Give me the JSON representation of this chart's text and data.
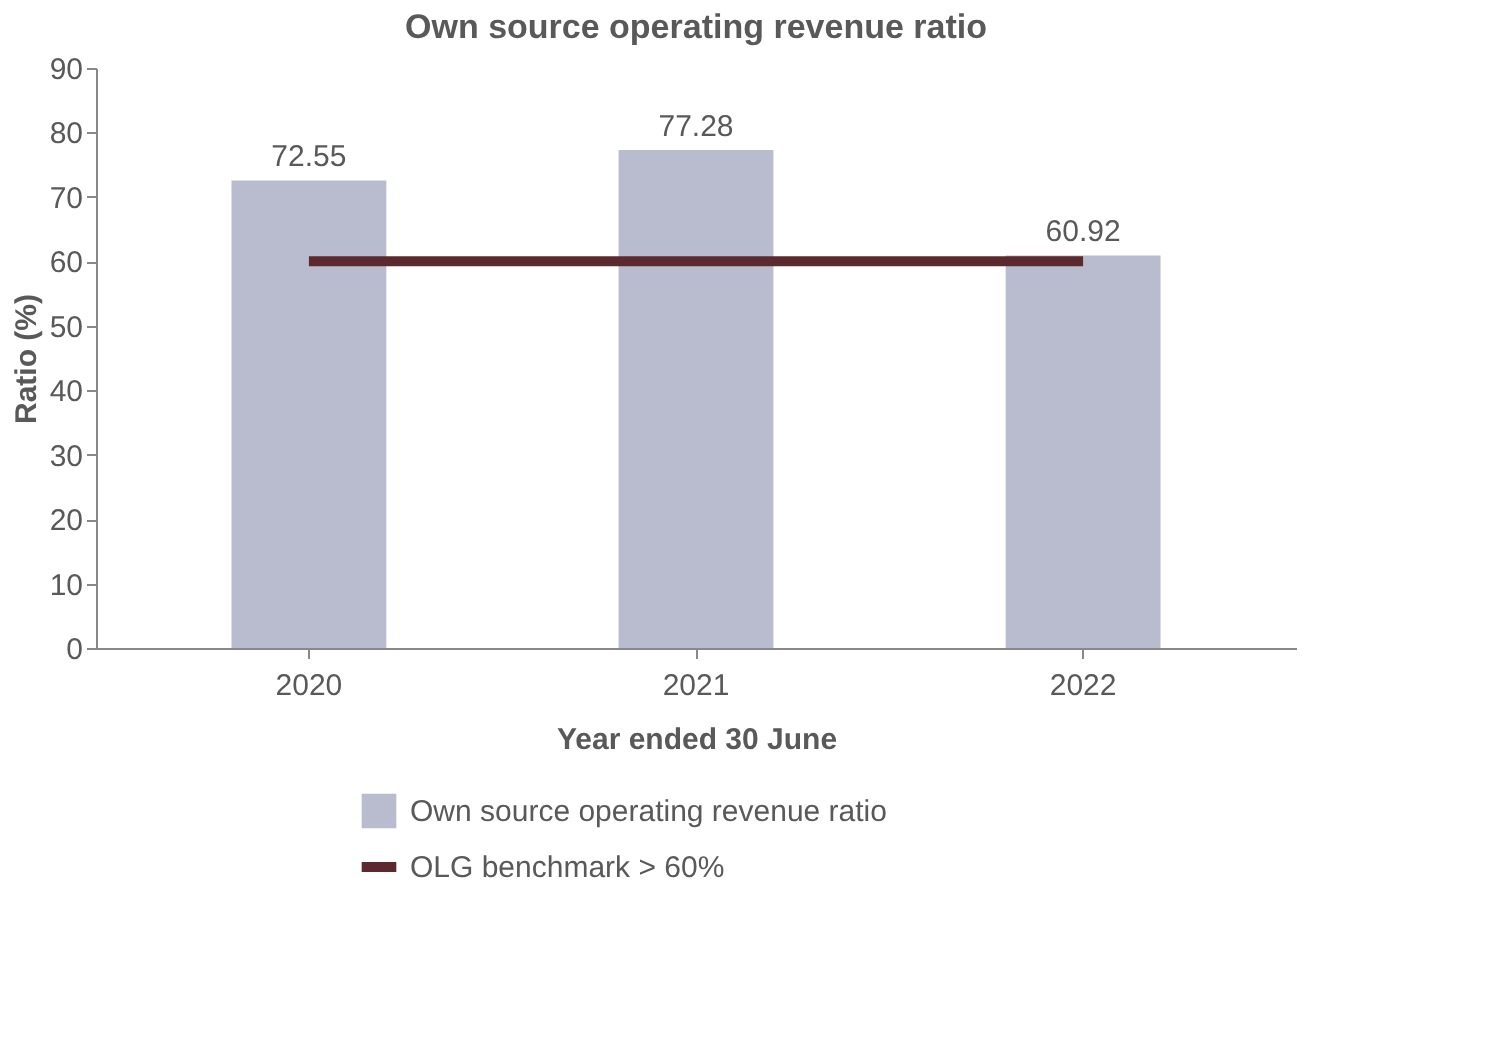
{
  "chart_data": {
    "type": "bar",
    "title": "Own source operating revenue ratio",
    "xlabel": "Year ended 30 June",
    "ylabel": "Ratio (%)",
    "categories": [
      "2020",
      "2021",
      "2022"
    ],
    "series": [
      {
        "name": "Own source operating revenue ratio",
        "color": "#b9bccf",
        "values": [
          72.55,
          77.28,
          60.92
        ],
        "value_labels": [
          "72.55",
          "77.28",
          "60.92"
        ]
      },
      {
        "name": "OLG benchmark > 60%",
        "type": "line",
        "color": "#5c2a2e",
        "values": [
          60,
          60,
          60
        ]
      }
    ],
    "ylim": [
      0,
      90
    ],
    "yticks": [
      0,
      10,
      20,
      30,
      40,
      50,
      60,
      70,
      80,
      90
    ],
    "grid": false,
    "legend": "bottom"
  }
}
